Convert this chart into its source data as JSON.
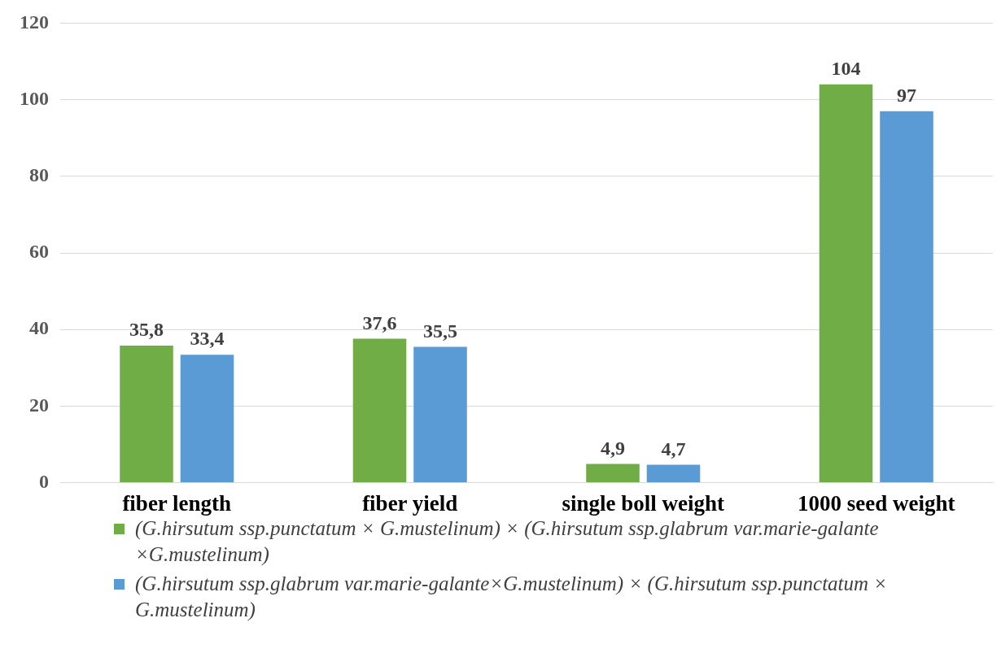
{
  "chart_data": {
    "type": "bar",
    "categories": [
      "fiber length",
      "fiber yield",
      "single boll weight",
      "1000 seed weight"
    ],
    "series": [
      {
        "name": "(G.hirsutum ssp.punctatum × G.mustelinum) × (G.hirsutum ssp.glabrum var.marie-galante ×G.mustelinum)",
        "color": "#70ad47",
        "values": [
          35.8,
          37.6,
          4.9,
          104
        ],
        "value_labels": [
          "35,8",
          "37,6",
          "4,9",
          "104"
        ]
      },
      {
        "name": "(G.hirsutum ssp.glabrum var.marie-galante×G.mustelinum) × (G.hirsutum ssp.punctatum × G.mustelinum)",
        "color": "#5b9bd5",
        "values": [
          33.4,
          35.5,
          4.7,
          97
        ],
        "value_labels": [
          "33,4",
          "35,5",
          "4,7",
          "97"
        ]
      }
    ],
    "ylim": [
      0,
      120
    ],
    "yticks": [
      0,
      20,
      40,
      60,
      80,
      100,
      120
    ],
    "grid": "y",
    "legend": "bottom"
  }
}
